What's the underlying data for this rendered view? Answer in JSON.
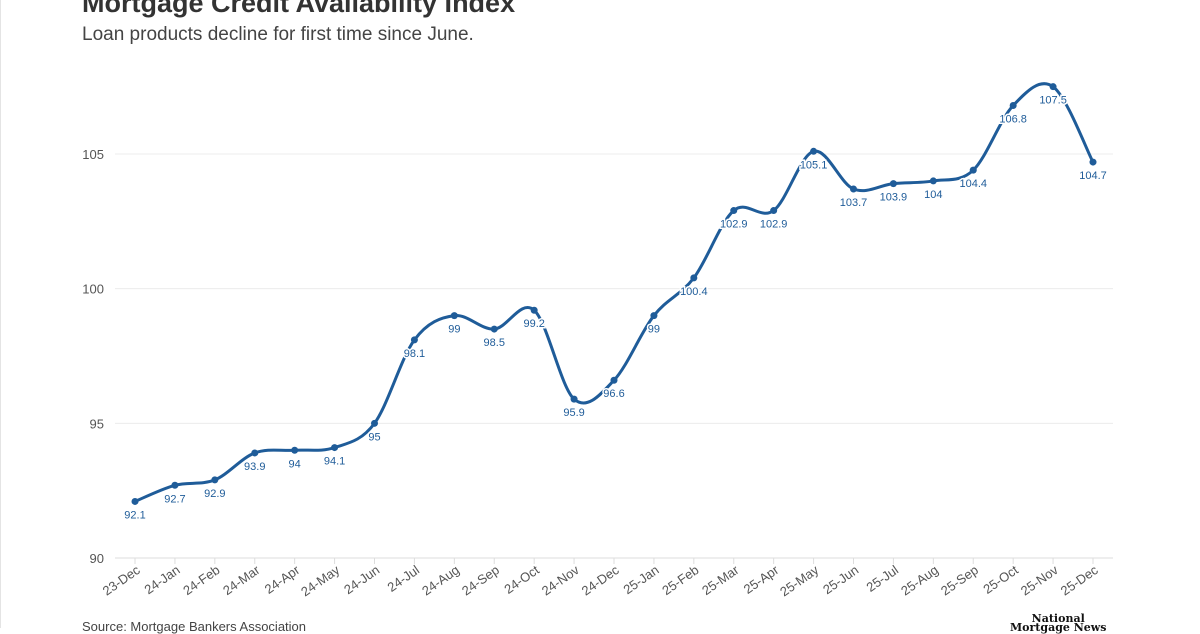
{
  "title": "Mortgage Credit Availability Index",
  "subtitle": "Loan products decline for first time since June.",
  "source": "Source: Mortgage Bankers Association",
  "logo": "National Mortgage News",
  "chart_data": {
    "type": "line",
    "title": "Mortgage Credit Availability Index",
    "subtitle": "Loan products decline for first time since June.",
    "categories": [
      "23-Dec",
      "24-Jan",
      "24-Feb",
      "24-Mar",
      "24-Apr",
      "24-May",
      "24-Jun",
      "24-Jul",
      "24-Aug",
      "24-Sep",
      "24-Oct",
      "24-Nov",
      "24-Dec",
      "25-Jan",
      "25-Feb",
      "25-Mar",
      "25-Apr",
      "25-May",
      "25-Jun",
      "25-Jul",
      "25-Aug",
      "25-Sep",
      "25-Oct",
      "25-Nov",
      "25-Dec"
    ],
    "values": [
      92.1,
      92.7,
      92.9,
      93.9,
      94,
      94.1,
      95,
      98.1,
      99,
      98.5,
      99.2,
      95.9,
      96.6,
      99,
      100.4,
      102.9,
      102.9,
      105.1,
      103.7,
      103.9,
      104,
      104.4,
      106.8,
      107.5,
      104.7
    ],
    "yticks": [
      90,
      95,
      100,
      105
    ],
    "ylim": [
      90,
      108.3
    ],
    "grid": true,
    "data_labels": true,
    "color": "#1f5c99"
  }
}
